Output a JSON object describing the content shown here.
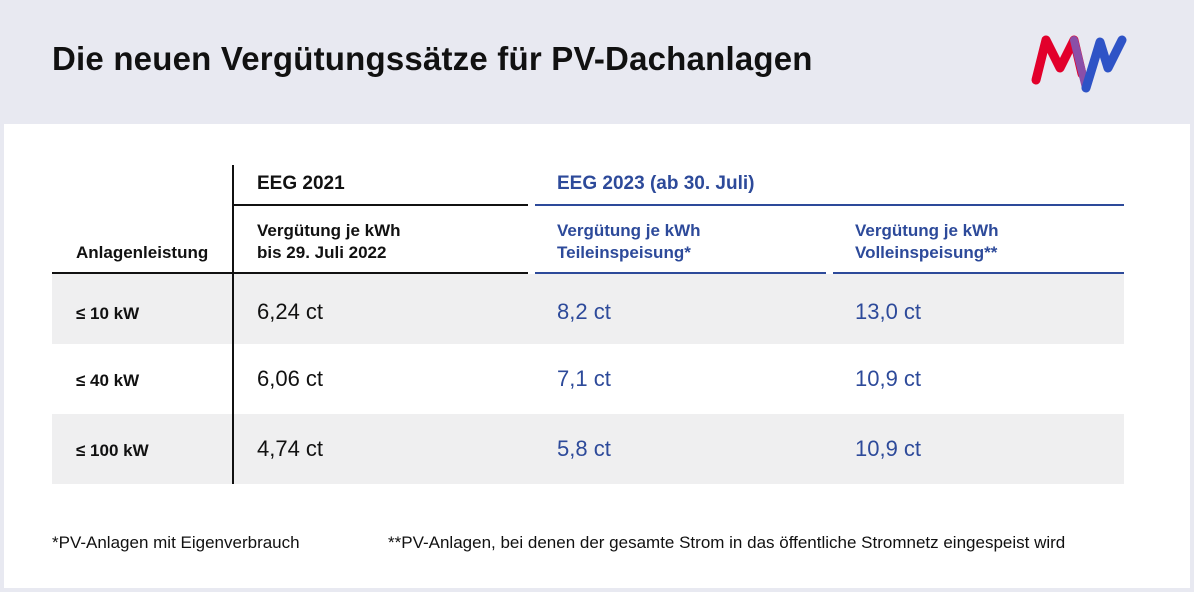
{
  "title": "Die neuen Vergütungssätze für PV-Dachanlagen",
  "logo_icon": "mvv-logo-icon",
  "colors": {
    "accent_blue": "#2d4a9a",
    "logo_red": "#e2002b",
    "logo_purple": "#8a4fa8",
    "logo_blue": "#2e53c6",
    "row_shade": "#efeff0",
    "header_bg": "#e8e9f1"
  },
  "table": {
    "col_label_header": "Anlagenleistung",
    "eeg2021": {
      "caption": "EEG 2021",
      "sub_line1": "Vergütung je kWh",
      "sub_line2": "bis 29. Juli 2022"
    },
    "eeg2023": {
      "caption": "EEG 2023 (ab 30. Juli)",
      "teil": {
        "line1": "Vergütung je kWh",
        "line2": "Teileinspeisung*"
      },
      "voll": {
        "line1": "Vergütung je kWh",
        "line2": "Volleinspeisung**"
      }
    },
    "rows": [
      {
        "label": "≤ 10 kW",
        "eeg2021": "6,24 ct",
        "teil": "8,2 ct",
        "voll": "13,0 ct"
      },
      {
        "label": "≤ 40 kW",
        "eeg2021": "6,06 ct",
        "teil": "7,1 ct",
        "voll": "10,9 ct"
      },
      {
        "label": "≤ 100 kW",
        "eeg2021": "4,74 ct",
        "teil": "5,8 ct",
        "voll": "10,9 ct"
      }
    ]
  },
  "footnotes": {
    "one": "*PV-Anlagen mit Eigenverbrauch",
    "two": "**PV-Anlagen, bei denen der gesamte Strom in das öffentliche Stromnetz eingespeist wird"
  }
}
